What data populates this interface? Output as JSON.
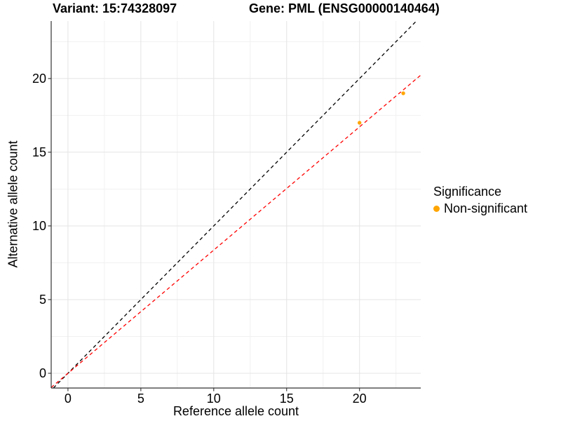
{
  "header": {
    "variant_title": "Variant: 15:74328097",
    "gene_title": "Gene: PML (ENSG00000140464)"
  },
  "chart_data": {
    "type": "scatter",
    "title": "Variant: 15:74328097   Gene: PML (ENSG00000140464)",
    "xlabel": "Reference allele count",
    "ylabel": "Alternative allele count",
    "xlim": [
      -1.15,
      24.2
    ],
    "ylim": [
      -1.0,
      23.9
    ],
    "x_ticks": [
      0,
      5,
      10,
      15,
      20
    ],
    "y_ticks": [
      0,
      5,
      10,
      15,
      20
    ],
    "x_minor_ticks": [
      2.5,
      7.5,
      12.5,
      17.5,
      22.5
    ],
    "y_minor_ticks": [
      2.5,
      7.5,
      12.5,
      17.5,
      22.5
    ],
    "grid": true,
    "points": [
      {
        "x": 20,
        "y": 17,
        "series": "Non-significant"
      },
      {
        "x": 23,
        "y": 19,
        "series": "Non-significant"
      }
    ],
    "point_color": "#FFA500",
    "point_radius": 2.7,
    "lines": [
      {
        "name": "identity-line",
        "slope": 1,
        "intercept": 0,
        "color": "#000000",
        "style": "dashed"
      },
      {
        "name": "fit-line",
        "slope": 0.836,
        "intercept": 0,
        "color": "#FF0000",
        "style": "dashed"
      }
    ],
    "legend": {
      "title": "Significance",
      "position": "right",
      "items": [
        {
          "label": "Non-significant",
          "color": "#FFA500"
        }
      ]
    },
    "colors": {
      "grid_major": "#E4E4E4",
      "grid_minor": "#F1F1F1",
      "axis_line": "#333333",
      "tick_mark": "#333333",
      "text": "#000000"
    }
  }
}
